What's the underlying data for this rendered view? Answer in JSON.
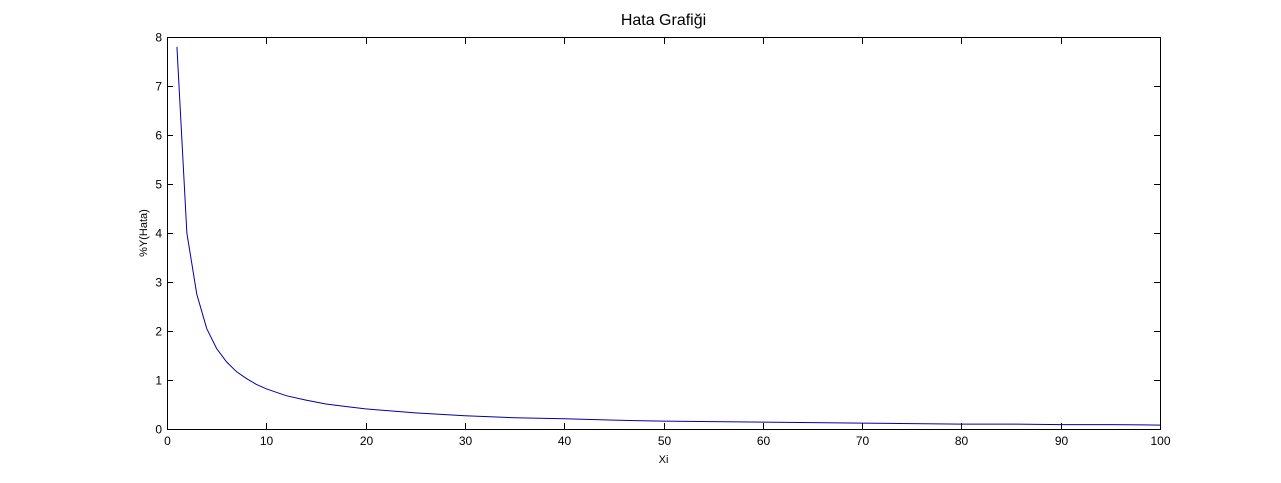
{
  "chart_data": {
    "type": "line",
    "title": "Hata Grafiği",
    "xlabel": "Xi",
    "ylabel": "%Y(Hata)",
    "xlim": [
      0,
      100
    ],
    "ylim": [
      0,
      8
    ],
    "xticks": [
      0,
      10,
      20,
      30,
      40,
      50,
      60,
      70,
      80,
      90,
      100
    ],
    "yticks": [
      0,
      1,
      2,
      3,
      4,
      5,
      6,
      7,
      8
    ],
    "grid": false,
    "series": [
      {
        "color": "#0000aa",
        "x": [
          1,
          2,
          3,
          4,
          5,
          6,
          7,
          8,
          9,
          10,
          12,
          14,
          16,
          18,
          20,
          25,
          30,
          35,
          40,
          45,
          50,
          55,
          60,
          65,
          70,
          75,
          80,
          85,
          90,
          95,
          100
        ],
        "y": [
          7.8,
          4.0,
          2.75,
          2.05,
          1.64,
          1.37,
          1.17,
          1.03,
          0.91,
          0.82,
          0.68,
          0.59,
          0.51,
          0.46,
          0.41,
          0.33,
          0.27,
          0.23,
          0.21,
          0.18,
          0.16,
          0.15,
          0.14,
          0.13,
          0.12,
          0.11,
          0.1,
          0.1,
          0.09,
          0.09,
          0.08
        ]
      }
    ]
  }
}
